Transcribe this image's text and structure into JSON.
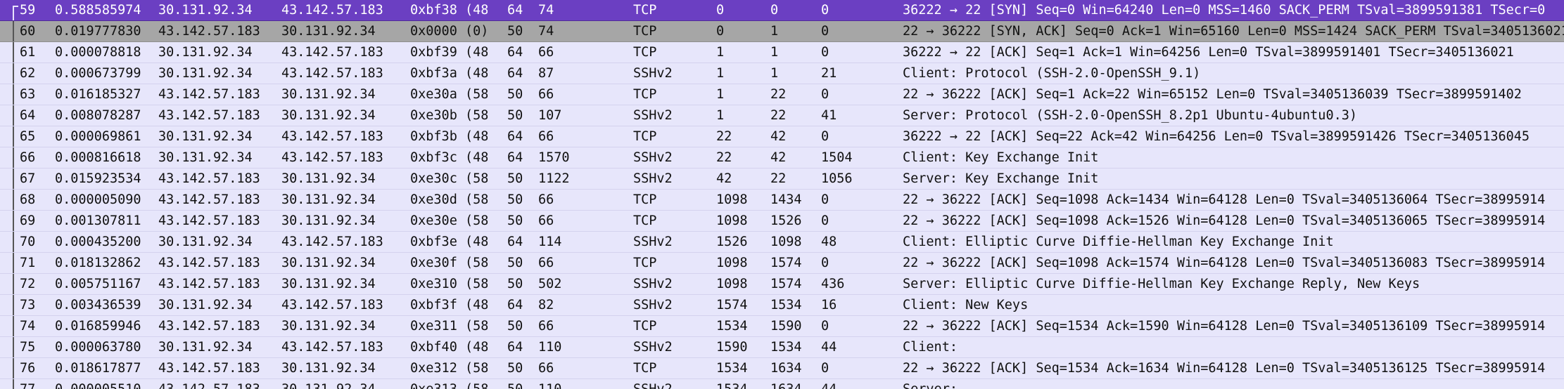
{
  "packets": [
    {
      "no": "59",
      "time": "0.588585974",
      "src": "30.131.92.34",
      "dst": "43.142.57.183",
      "id": "0xbf38 (48…",
      "ttl": "64",
      "len": "74",
      "proto": "TCP",
      "seq": "0",
      "ack": "0",
      "plen": "0",
      "info": "36222 → 22 [SYN] Seq=0 Win=64240 Len=0 MSS=1460 SACK_PERM TSval=3899591381 TSecr=0",
      "state": "selected"
    },
    {
      "no": "60",
      "time": "0.019777830",
      "src": "43.142.57.183",
      "dst": "30.131.92.34",
      "id": "0x0000 (0)",
      "ttl": "50",
      "len": "74",
      "proto": "TCP",
      "seq": "0",
      "ack": "1",
      "plen": "0",
      "info": "22 → 36222 [SYN, ACK] Seq=0 Ack=1 Win=65160 Len=0 MSS=1424 SACK_PERM TSval=3405136021",
      "state": "related"
    },
    {
      "no": "61",
      "time": "0.000078818",
      "src": "30.131.92.34",
      "dst": "43.142.57.183",
      "id": "0xbf39 (48…",
      "ttl": "64",
      "len": "66",
      "proto": "TCP",
      "seq": "1",
      "ack": "1",
      "plen": "0",
      "info": "36222 → 22 [ACK] Seq=1 Ack=1 Win=64256 Len=0 TSval=3899591401 TSecr=3405136021",
      "state": "normal"
    },
    {
      "no": "62",
      "time": "0.000673799",
      "src": "30.131.92.34",
      "dst": "43.142.57.183",
      "id": "0xbf3a (48…",
      "ttl": "64",
      "len": "87",
      "proto": "SSHv2",
      "seq": "1",
      "ack": "1",
      "plen": "21",
      "info": "Client: Protocol (SSH-2.0-OpenSSH_9.1)",
      "state": "normal"
    },
    {
      "no": "63",
      "time": "0.016185327",
      "src": "43.142.57.183",
      "dst": "30.131.92.34",
      "id": "0xe30a (58…",
      "ttl": "50",
      "len": "66",
      "proto": "TCP",
      "seq": "1",
      "ack": "22",
      "plen": "0",
      "info": "22 → 36222 [ACK] Seq=1 Ack=22 Win=65152 Len=0 TSval=3405136039 TSecr=3899591402",
      "state": "normal"
    },
    {
      "no": "64",
      "time": "0.008078287",
      "src": "43.142.57.183",
      "dst": "30.131.92.34",
      "id": "0xe30b (58…",
      "ttl": "50",
      "len": "107",
      "proto": "SSHv2",
      "seq": "1",
      "ack": "22",
      "plen": "41",
      "info": "Server: Protocol (SSH-2.0-OpenSSH_8.2p1 Ubuntu-4ubuntu0.3)",
      "state": "normal"
    },
    {
      "no": "65",
      "time": "0.000069861",
      "src": "30.131.92.34",
      "dst": "43.142.57.183",
      "id": "0xbf3b (48…",
      "ttl": "64",
      "len": "66",
      "proto": "TCP",
      "seq": "22",
      "ack": "42",
      "plen": "0",
      "info": "36222 → 22 [ACK] Seq=22 Ack=42 Win=64256 Len=0 TSval=3899591426 TSecr=3405136045",
      "state": "normal"
    },
    {
      "no": "66",
      "time": "0.000816618",
      "src": "30.131.92.34",
      "dst": "43.142.57.183",
      "id": "0xbf3c (48…",
      "ttl": "64",
      "len": "1570",
      "proto": "SSHv2",
      "seq": "22",
      "ack": "42",
      "plen": "1504",
      "info": "Client: Key Exchange Init",
      "state": "normal"
    },
    {
      "no": "67",
      "time": "0.015923534",
      "src": "43.142.57.183",
      "dst": "30.131.92.34",
      "id": "0xe30c (58…",
      "ttl": "50",
      "len": "1122",
      "proto": "SSHv2",
      "seq": "42",
      "ack": "22",
      "plen": "1056",
      "info": "Server: Key Exchange Init",
      "state": "normal"
    },
    {
      "no": "68",
      "time": "0.000005090",
      "src": "43.142.57.183",
      "dst": "30.131.92.34",
      "id": "0xe30d (58…",
      "ttl": "50",
      "len": "66",
      "proto": "TCP",
      "seq": "1098",
      "ack": "1434",
      "plen": "0",
      "info": "22 → 36222 [ACK] Seq=1098 Ack=1434 Win=64128 Len=0 TSval=3405136064 TSecr=38995914",
      "state": "normal"
    },
    {
      "no": "69",
      "time": "0.001307811",
      "src": "43.142.57.183",
      "dst": "30.131.92.34",
      "id": "0xe30e (58…",
      "ttl": "50",
      "len": "66",
      "proto": "TCP",
      "seq": "1098",
      "ack": "1526",
      "plen": "0",
      "info": "22 → 36222 [ACK] Seq=1098 Ack=1526 Win=64128 Len=0 TSval=3405136065 TSecr=38995914",
      "state": "normal"
    },
    {
      "no": "70",
      "time": "0.000435200",
      "src": "30.131.92.34",
      "dst": "43.142.57.183",
      "id": "0xbf3e (48…",
      "ttl": "64",
      "len": "114",
      "proto": "SSHv2",
      "seq": "1526",
      "ack": "1098",
      "plen": "48",
      "info": "Client: Elliptic Curve Diffie-Hellman Key Exchange Init",
      "state": "normal"
    },
    {
      "no": "71",
      "time": "0.018132862",
      "src": "43.142.57.183",
      "dst": "30.131.92.34",
      "id": "0xe30f (58…",
      "ttl": "50",
      "len": "66",
      "proto": "TCP",
      "seq": "1098",
      "ack": "1574",
      "plen": "0",
      "info": "22 → 36222 [ACK] Seq=1098 Ack=1574 Win=64128 Len=0 TSval=3405136083 TSecr=38995914",
      "state": "normal"
    },
    {
      "no": "72",
      "time": "0.005751167",
      "src": "43.142.57.183",
      "dst": "30.131.92.34",
      "id": "0xe310 (58…",
      "ttl": "50",
      "len": "502",
      "proto": "SSHv2",
      "seq": "1098",
      "ack": "1574",
      "plen": "436",
      "info": "Server: Elliptic Curve Diffie-Hellman Key Exchange Reply, New Keys",
      "state": "normal"
    },
    {
      "no": "73",
      "time": "0.003436539",
      "src": "30.131.92.34",
      "dst": "43.142.57.183",
      "id": "0xbf3f (48…",
      "ttl": "64",
      "len": "82",
      "proto": "SSHv2",
      "seq": "1574",
      "ack": "1534",
      "plen": "16",
      "info": "Client: New Keys",
      "state": "normal"
    },
    {
      "no": "74",
      "time": "0.016859946",
      "src": "43.142.57.183",
      "dst": "30.131.92.34",
      "id": "0xe311 (58…",
      "ttl": "50",
      "len": "66",
      "proto": "TCP",
      "seq": "1534",
      "ack": "1590",
      "plen": "0",
      "info": "22 → 36222 [ACK] Seq=1534 Ack=1590 Win=64128 Len=0 TSval=3405136109 TSecr=38995914",
      "state": "normal"
    },
    {
      "no": "75",
      "time": "0.000063780",
      "src": "30.131.92.34",
      "dst": "43.142.57.183",
      "id": "0xbf40 (48…",
      "ttl": "64",
      "len": "110",
      "proto": "SSHv2",
      "seq": "1590",
      "ack": "1534",
      "plen": "44",
      "info": "Client:",
      "state": "normal"
    },
    {
      "no": "76",
      "time": "0.018617877",
      "src": "43.142.57.183",
      "dst": "30.131.92.34",
      "id": "0xe312 (58…",
      "ttl": "50",
      "len": "66",
      "proto": "TCP",
      "seq": "1534",
      "ack": "1634",
      "plen": "0",
      "info": "22 → 36222 [ACK] Seq=1534 Ack=1634 Win=64128 Len=0 TSval=3405136125 TSecr=38995914",
      "state": "normal"
    },
    {
      "no": "77",
      "time": "0.000005510",
      "src": "43.142.57.183",
      "dst": "30.131.92.34",
      "id": "0xe313 (58…",
      "ttl": "50",
      "len": "110",
      "proto": "SSHv2",
      "seq": "1534",
      "ack": "1634",
      "plen": "44",
      "info": "Server:",
      "state": "normal"
    }
  ],
  "colors": {
    "row_background": "#e7e6fb",
    "selected_background": "#6b3fc2",
    "related_background": "#a6a6a6"
  }
}
